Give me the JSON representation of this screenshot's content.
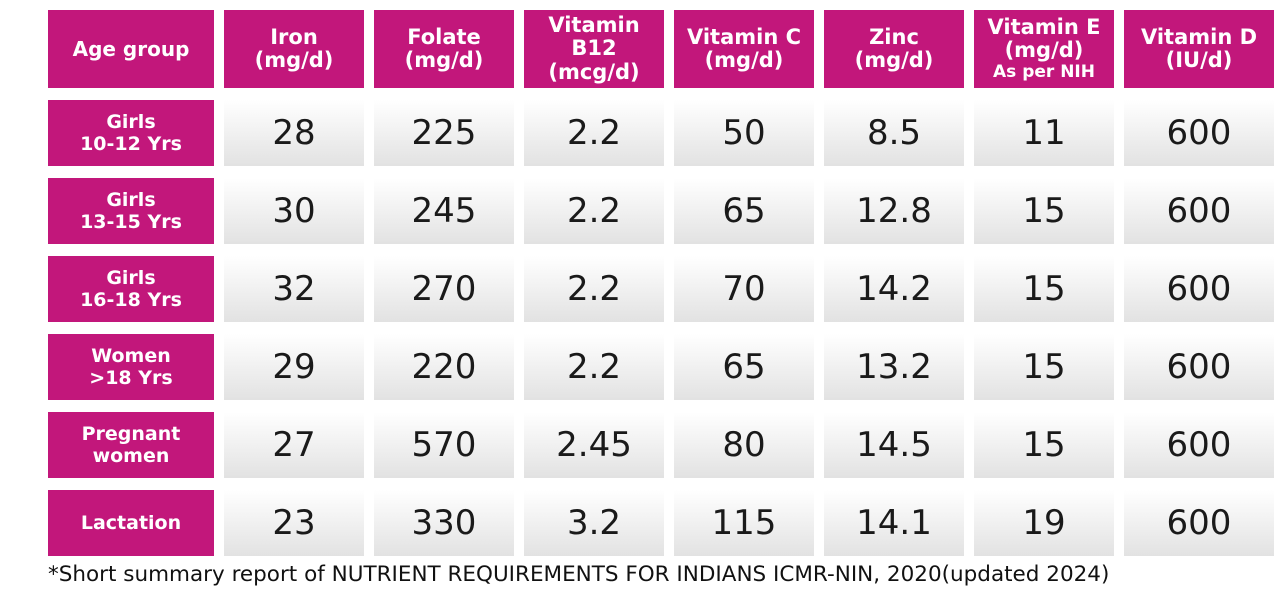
{
  "colors": {
    "header_bg": "#c2177b",
    "header_text": "#ffffff",
    "cell_bg": "#eeeeee",
    "cell_text": "#1a1a1a"
  },
  "table": {
    "headers": [
      {
        "label": "Age group",
        "sub": ""
      },
      {
        "label": "Iron\n(mg/d)",
        "sub": ""
      },
      {
        "label": "Folate\n(mg/d)",
        "sub": ""
      },
      {
        "label": "Vitamin B12\n(mcg/d)",
        "sub": ""
      },
      {
        "label": "Vitamin C\n(mg/d)",
        "sub": ""
      },
      {
        "label": "Zinc\n(mg/d)",
        "sub": ""
      },
      {
        "label": "Vitamin E\n(mg/d)",
        "sub": "As per NIH"
      },
      {
        "label": "Vitamin D\n(IU/d)",
        "sub": ""
      }
    ],
    "rows": [
      {
        "label": "Girls\n10-12 Yrs",
        "values": [
          "28",
          "225",
          "2.2",
          "50",
          "8.5",
          "11",
          "600"
        ]
      },
      {
        "label": "Girls\n13-15 Yrs",
        "values": [
          "30",
          "245",
          "2.2",
          "65",
          "12.8",
          "15",
          "600"
        ]
      },
      {
        "label": "Girls\n16-18 Yrs",
        "values": [
          "32",
          "270",
          "2.2",
          "70",
          "14.2",
          "15",
          "600"
        ]
      },
      {
        "label": "Women\n>18 Yrs",
        "values": [
          "29",
          "220",
          "2.2",
          "65",
          "13.2",
          "15",
          "600"
        ]
      },
      {
        "label": "Pregnant\nwomen",
        "values": [
          "27",
          "570",
          "2.45",
          "80",
          "14.5",
          "15",
          "600"
        ]
      },
      {
        "label": "Lactation",
        "values": [
          "23",
          "330",
          "3.2",
          "115",
          "14.1",
          "19",
          "600"
        ]
      }
    ]
  },
  "footnote": "*Short summary report of NUTRIENT REQUIREMENTS FOR INDIANS ICMR-NIN, 2020(updated 2024)"
}
